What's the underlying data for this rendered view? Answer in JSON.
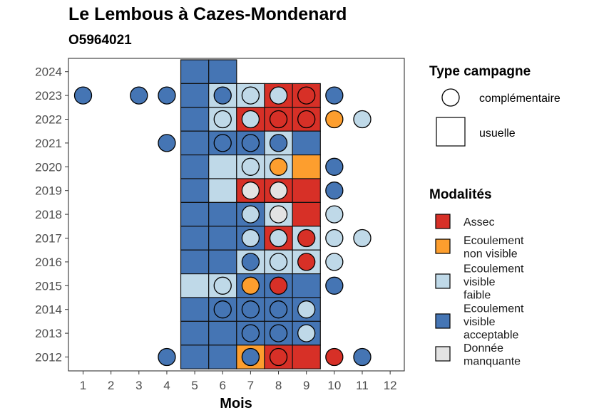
{
  "chart_data": {
    "type": "heatmap",
    "title": "Le Lembous à Cazes-Mondenard",
    "subtitle": "O5964021",
    "xlabel": "Mois",
    "ylabel": "",
    "x_ticks": [
      1,
      2,
      3,
      4,
      5,
      6,
      7,
      8,
      9,
      10,
      11,
      12
    ],
    "y_ticks": [
      2012,
      2013,
      2014,
      2015,
      2016,
      2017,
      2018,
      2019,
      2020,
      2021,
      2022,
      2023,
      2024
    ],
    "xlim": [
      0.5,
      12.5
    ],
    "ylim": [
      2011.5,
      2024.5
    ],
    "colors": {
      "Assec": "#D73027",
      "Ecoulement non visible": "#FD9E2E",
      "Ecoulement visible faible": "#BFD9E8",
      "Ecoulement visible acceptable": "#4575B4",
      "Donnée manquante": "#E3E3E3"
    },
    "usuelle": [
      {
        "year": 2024,
        "months": [
          5,
          6
        ],
        "values": [
          "Ecoulement visible acceptable",
          "Ecoulement visible acceptable"
        ]
      },
      {
        "year": 2023,
        "months": [
          5,
          6,
          7,
          8,
          9
        ],
        "values": [
          "Ecoulement visible acceptable",
          "Ecoulement visible faible",
          "Ecoulement visible faible",
          "Assec",
          "Assec"
        ]
      },
      {
        "year": 2022,
        "months": [
          5,
          6,
          7,
          8,
          9
        ],
        "values": [
          "Ecoulement visible acceptable",
          "Ecoulement visible faible",
          "Assec",
          "Assec",
          "Assec"
        ]
      },
      {
        "year": 2021,
        "months": [
          5,
          6,
          7,
          8,
          9
        ],
        "values": [
          "Ecoulement visible acceptable",
          "Ecoulement visible acceptable",
          "Ecoulement visible acceptable",
          "Ecoulement visible faible",
          "Ecoulement visible acceptable"
        ]
      },
      {
        "year": 2020,
        "months": [
          5,
          6,
          7,
          8,
          9
        ],
        "values": [
          "Ecoulement visible acceptable",
          "Ecoulement visible faible",
          "Ecoulement visible faible",
          "Ecoulement visible faible",
          "Ecoulement non visible"
        ]
      },
      {
        "year": 2019,
        "months": [
          5,
          6,
          7,
          8,
          9
        ],
        "values": [
          "Ecoulement visible acceptable",
          "Ecoulement visible faible",
          "Assec",
          "Assec",
          "Assec"
        ]
      },
      {
        "year": 2018,
        "months": [
          5,
          6,
          7,
          8,
          9
        ],
        "values": [
          "Ecoulement visible acceptable",
          "Ecoulement visible acceptable",
          "Ecoulement visible acceptable",
          "Ecoulement visible faible",
          "Assec"
        ]
      },
      {
        "year": 2017,
        "months": [
          5,
          6,
          7,
          8,
          9
        ],
        "values": [
          "Ecoulement visible acceptable",
          "Ecoulement visible acceptable",
          "Ecoulement visible acceptable",
          "Assec",
          "Ecoulement visible faible"
        ]
      },
      {
        "year": 2016,
        "months": [
          5,
          6,
          7,
          8,
          9
        ],
        "values": [
          "Ecoulement visible acceptable",
          "Ecoulement visible acceptable",
          "Ecoulement visible faible",
          "Ecoulement visible faible",
          "Ecoulement visible faible"
        ]
      },
      {
        "year": 2015,
        "months": [
          5,
          6,
          7,
          8,
          9
        ],
        "values": [
          "Ecoulement visible faible",
          "Ecoulement visible faible",
          "Ecoulement visible acceptable",
          "Ecoulement visible acceptable",
          "Ecoulement visible acceptable"
        ]
      },
      {
        "year": 2014,
        "months": [
          5,
          6,
          7,
          8,
          9
        ],
        "values": [
          "Ecoulement visible acceptable",
          "Ecoulement visible acceptable",
          "Ecoulement visible acceptable",
          "Ecoulement visible acceptable",
          "Ecoulement visible acceptable"
        ]
      },
      {
        "year": 2013,
        "months": [
          5,
          6,
          7,
          8,
          9
        ],
        "values": [
          "Ecoulement visible acceptable",
          "Ecoulement visible acceptable",
          "Ecoulement visible acceptable",
          "Ecoulement visible acceptable",
          "Ecoulement visible acceptable"
        ]
      },
      {
        "year": 2012,
        "months": [
          5,
          6,
          7,
          8,
          9
        ],
        "values": [
          "Ecoulement visible acceptable",
          "Ecoulement visible acceptable",
          "Ecoulement non visible",
          "Assec",
          "Assec"
        ]
      }
    ],
    "complementaire": [
      {
        "year": 2023,
        "month": 1,
        "value": "Ecoulement visible acceptable"
      },
      {
        "year": 2023,
        "month": 3,
        "value": "Ecoulement visible acceptable"
      },
      {
        "year": 2023,
        "month": 4,
        "value": "Ecoulement visible acceptable"
      },
      {
        "year": 2023,
        "month": 6,
        "value": "Ecoulement visible acceptable"
      },
      {
        "year": 2023,
        "month": 7,
        "value": "Ecoulement visible faible"
      },
      {
        "year": 2023,
        "month": 8,
        "value": "Ecoulement visible faible"
      },
      {
        "year": 2023,
        "month": 9,
        "value": "Assec"
      },
      {
        "year": 2023,
        "month": 10,
        "value": "Ecoulement visible acceptable"
      },
      {
        "year": 2022,
        "month": 6,
        "value": "Ecoulement visible faible"
      },
      {
        "year": 2022,
        "month": 7,
        "value": "Ecoulement visible faible"
      },
      {
        "year": 2022,
        "month": 8,
        "value": "Assec"
      },
      {
        "year": 2022,
        "month": 9,
        "value": "Assec"
      },
      {
        "year": 2022,
        "month": 10,
        "value": "Ecoulement non visible"
      },
      {
        "year": 2022,
        "month": 11,
        "value": "Ecoulement visible faible"
      },
      {
        "year": 2021,
        "month": 4,
        "value": "Ecoulement visible acceptable"
      },
      {
        "year": 2021,
        "month": 6,
        "value": "Ecoulement visible acceptable"
      },
      {
        "year": 2021,
        "month": 7,
        "value": "Ecoulement visible acceptable"
      },
      {
        "year": 2021,
        "month": 8,
        "value": "Ecoulement visible acceptable"
      },
      {
        "year": 2020,
        "month": 7,
        "value": "Ecoulement visible faible"
      },
      {
        "year": 2020,
        "month": 8,
        "value": "Ecoulement non visible"
      },
      {
        "year": 2020,
        "month": 10,
        "value": "Ecoulement visible acceptable"
      },
      {
        "year": 2019,
        "month": 7,
        "value": "Donnée manquante"
      },
      {
        "year": 2019,
        "month": 8,
        "value": "Donnée manquante"
      },
      {
        "year": 2019,
        "month": 10,
        "value": "Ecoulement visible acceptable"
      },
      {
        "year": 2018,
        "month": 7,
        "value": "Ecoulement visible faible"
      },
      {
        "year": 2018,
        "month": 8,
        "value": "Donnée manquante"
      },
      {
        "year": 2018,
        "month": 10,
        "value": "Ecoulement visible faible"
      },
      {
        "year": 2017,
        "month": 7,
        "value": "Ecoulement visible faible"
      },
      {
        "year": 2017,
        "month": 8,
        "value": "Ecoulement visible faible"
      },
      {
        "year": 2017,
        "month": 9,
        "value": "Assec"
      },
      {
        "year": 2017,
        "month": 10,
        "value": "Ecoulement visible faible"
      },
      {
        "year": 2017,
        "month": 11,
        "value": "Ecoulement visible faible"
      },
      {
        "year": 2016,
        "month": 7,
        "value": "Ecoulement visible acceptable"
      },
      {
        "year": 2016,
        "month": 8,
        "value": "Ecoulement visible faible"
      },
      {
        "year": 2016,
        "month": 9,
        "value": "Assec"
      },
      {
        "year": 2016,
        "month": 10,
        "value": "Ecoulement visible faible"
      },
      {
        "year": 2015,
        "month": 6,
        "value": "Ecoulement visible faible"
      },
      {
        "year": 2015,
        "month": 7,
        "value": "Ecoulement non visible"
      },
      {
        "year": 2015,
        "month": 8,
        "value": "Assec"
      },
      {
        "year": 2015,
        "month": 10,
        "value": "Ecoulement visible acceptable"
      },
      {
        "year": 2014,
        "month": 6,
        "value": "Ecoulement visible acceptable"
      },
      {
        "year": 2014,
        "month": 7,
        "value": "Ecoulement visible acceptable"
      },
      {
        "year": 2014,
        "month": 8,
        "value": "Ecoulement visible acceptable"
      },
      {
        "year": 2014,
        "month": 9,
        "value": "Ecoulement visible faible"
      },
      {
        "year": 2013,
        "month": 7,
        "value": "Ecoulement visible acceptable"
      },
      {
        "year": 2013,
        "month": 8,
        "value": "Ecoulement visible acceptable"
      },
      {
        "year": 2013,
        "month": 9,
        "value": "Ecoulement visible faible"
      },
      {
        "year": 2012,
        "month": 4,
        "value": "Ecoulement visible acceptable"
      },
      {
        "year": 2012,
        "month": 7,
        "value": "Ecoulement visible acceptable"
      },
      {
        "year": 2012,
        "month": 8,
        "value": "Assec"
      },
      {
        "year": 2012,
        "month": 10,
        "value": "Assec"
      },
      {
        "year": 2012,
        "month": 11,
        "value": "Ecoulement visible acceptable"
      }
    ],
    "legend": {
      "placement": "right",
      "type_title": "Type campagne",
      "type_items": [
        "complémentaire",
        "usuelle"
      ],
      "mod_title": "Modalités",
      "mod_items": [
        {
          "key": "Assec",
          "lines": [
            "Assec"
          ]
        },
        {
          "key": "Ecoulement non visible",
          "lines": [
            "Ecoulement",
            "non visible"
          ]
        },
        {
          "key": "Ecoulement visible faible",
          "lines": [
            "Ecoulement",
            "visible",
            "faible"
          ]
        },
        {
          "key": "Ecoulement visible acceptable",
          "lines": [
            "Ecoulement",
            "visible",
            "acceptable"
          ]
        },
        {
          "key": "Donnée manquante",
          "lines": [
            "Donnée",
            "manquante"
          ]
        }
      ]
    }
  }
}
